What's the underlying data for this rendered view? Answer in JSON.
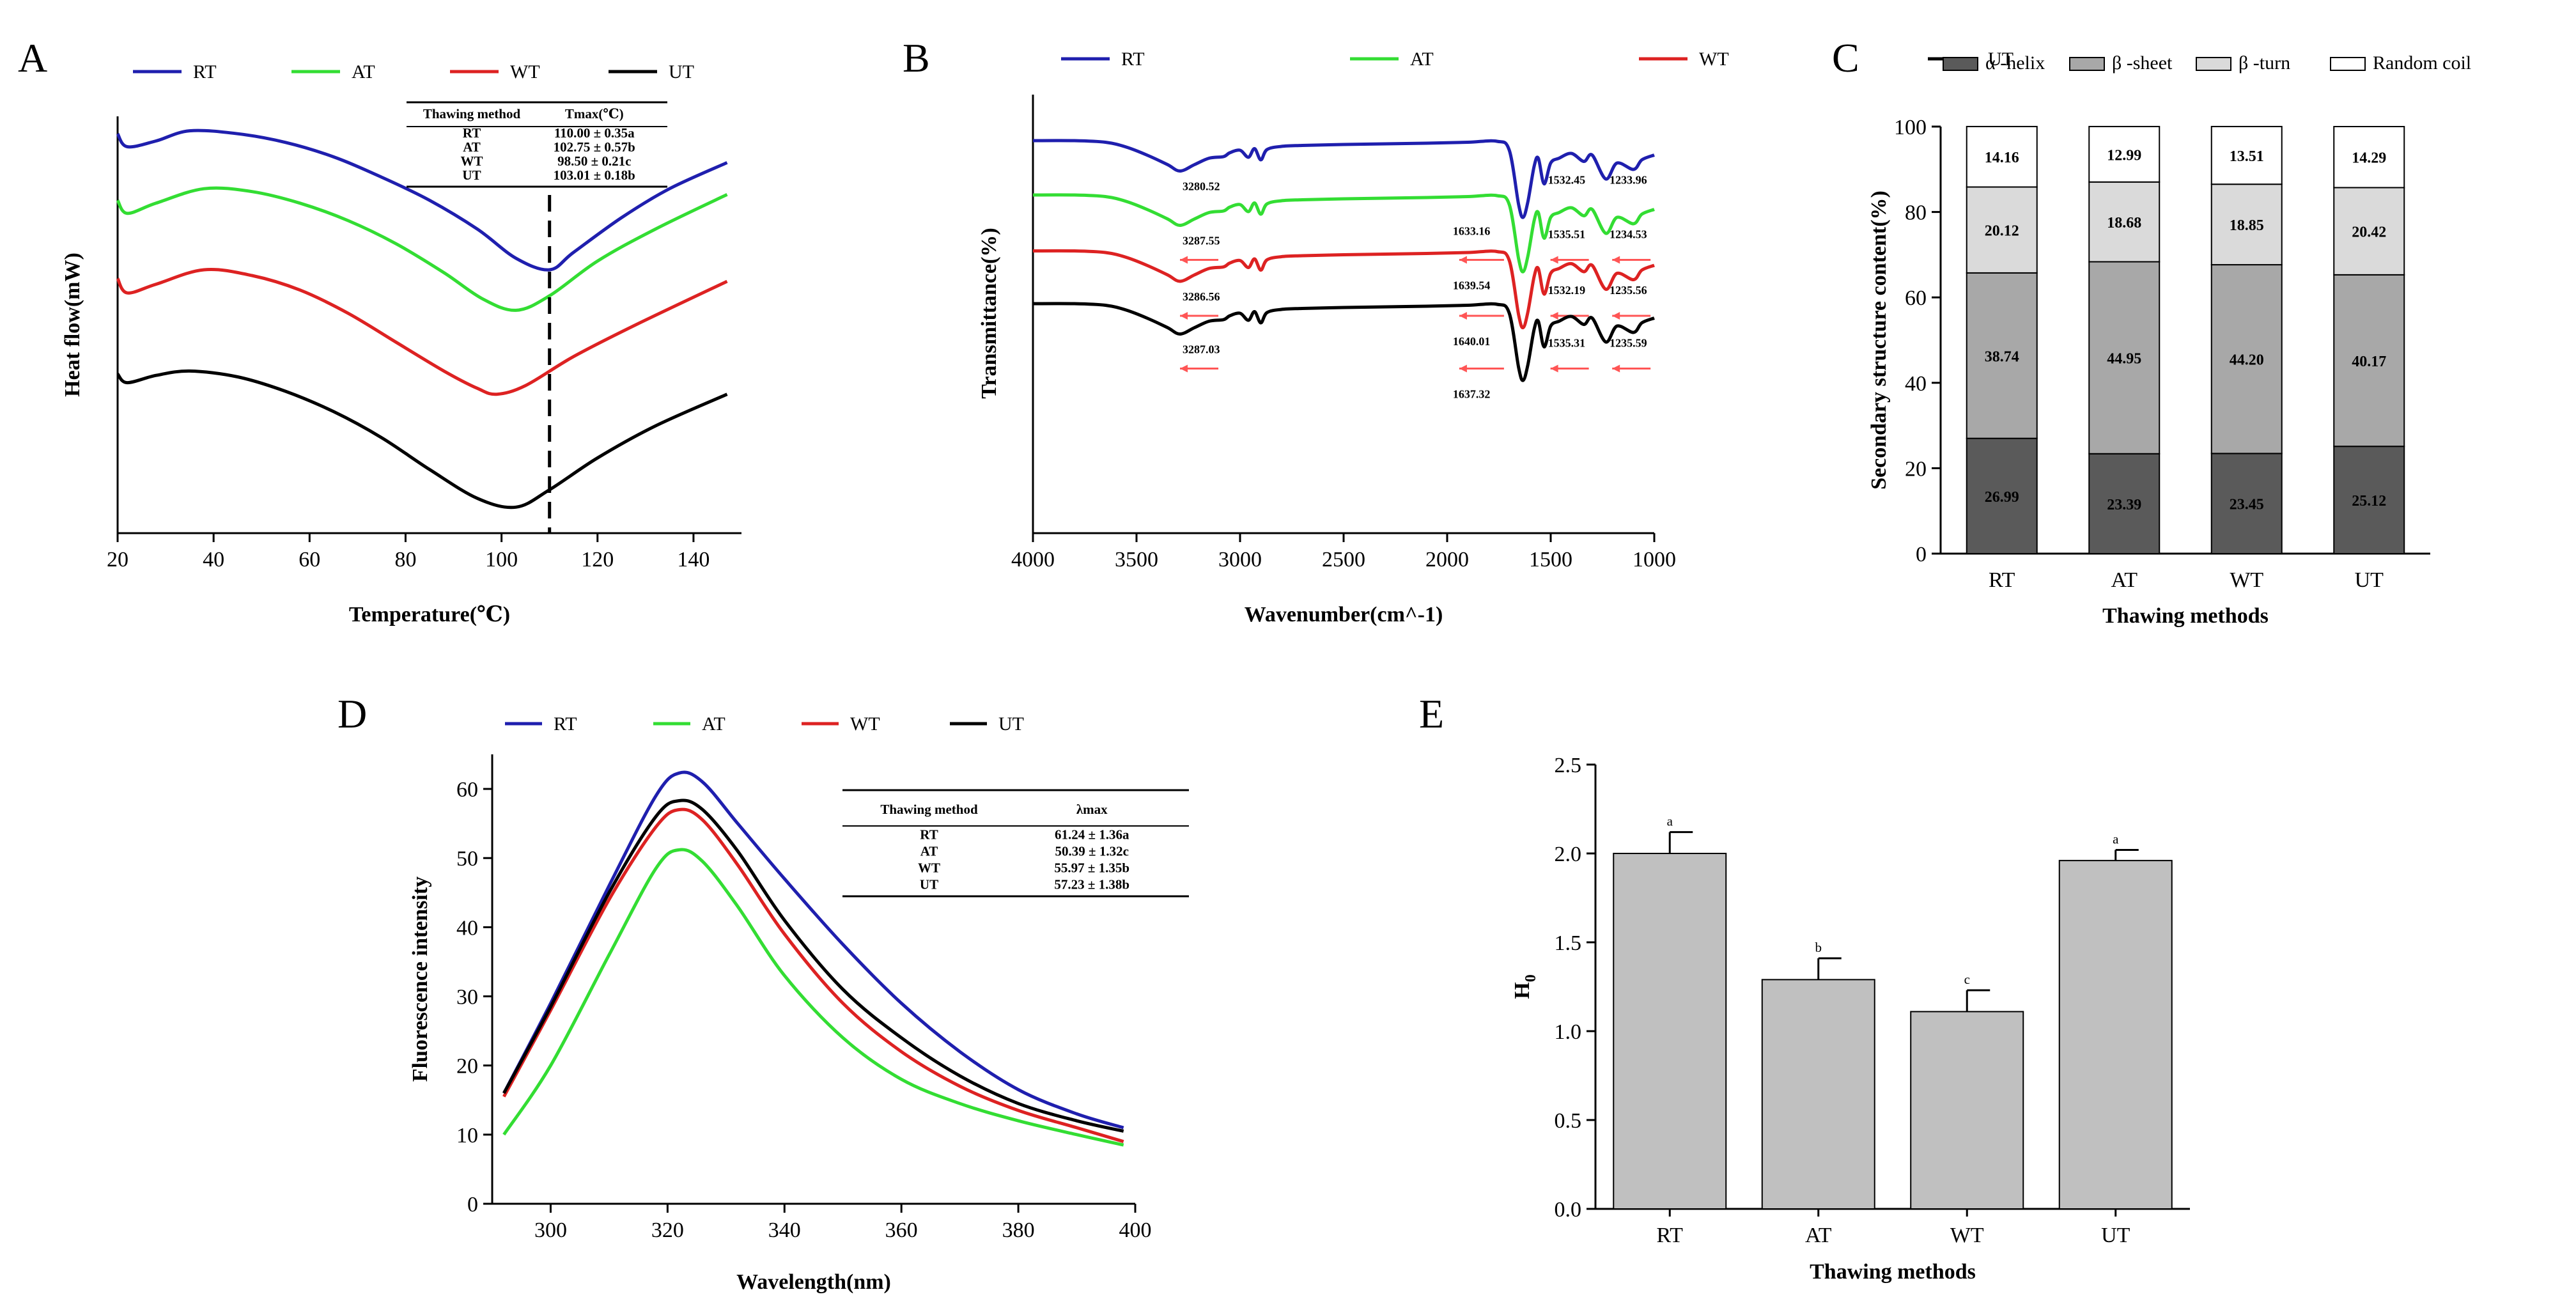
{
  "colors": {
    "RT": "#1f1fae",
    "AT": "#33dd33",
    "WT": "#dd2222",
    "UT": "#000000",
    "arrow": "#ff5555",
    "alpha": "#5a5a5a",
    "beta_sheet": "#a8a8a8",
    "beta_turn": "#dadada",
    "random": "#ffffff",
    "bar": "#c0c0c0"
  },
  "chart_data": [
    {
      "id": "A",
      "type": "line",
      "panel_label": "A",
      "xlabel": "Temperature(℃)",
      "ylabel": "Heat flow(mW)",
      "xlim": [
        20,
        150
      ],
      "xticks": [
        "20",
        "40",
        "60",
        "80",
        "100",
        "120",
        "140"
      ],
      "y_units": "relative (no y tick labels shown)",
      "legend": [
        "RT",
        "AT",
        "WT",
        "UT"
      ],
      "series": [
        {
          "name": "RT",
          "points": [
            [
              20,
              0.06
            ],
            [
              22,
              0.015
            ],
            [
              28,
              0.035
            ],
            [
              35,
              0.07
            ],
            [
              45,
              0.06
            ],
            [
              55,
              0.03
            ],
            [
              65,
              -0.02
            ],
            [
              75,
              -0.09
            ],
            [
              85,
              -0.17
            ],
            [
              95,
              -0.27
            ],
            [
              103,
              -0.37
            ],
            [
              110,
              -0.41
            ],
            [
              115,
              -0.35
            ],
            [
              125,
              -0.23
            ],
            [
              135,
              -0.13
            ],
            [
              147,
              -0.04
            ]
          ]
        },
        {
          "name": "AT",
          "points": [
            [
              20,
              -0.17
            ],
            [
              22,
              -0.215
            ],
            [
              28,
              -0.18
            ],
            [
              38,
              -0.13
            ],
            [
              48,
              -0.14
            ],
            [
              58,
              -0.18
            ],
            [
              68,
              -0.24
            ],
            [
              78,
              -0.32
            ],
            [
              88,
              -0.42
            ],
            [
              96,
              -0.51
            ],
            [
              103,
              -0.55
            ],
            [
              110,
              -0.5
            ],
            [
              120,
              -0.38
            ],
            [
              132,
              -0.27
            ],
            [
              147,
              -0.15
            ]
          ]
        },
        {
          "name": "WT",
          "points": [
            [
              20,
              -0.44
            ],
            [
              22,
              -0.49
            ],
            [
              28,
              -0.46
            ],
            [
              38,
              -0.41
            ],
            [
              48,
              -0.43
            ],
            [
              58,
              -0.48
            ],
            [
              68,
              -0.56
            ],
            [
              78,
              -0.66
            ],
            [
              88,
              -0.76
            ],
            [
              95,
              -0.82
            ],
            [
              99,
              -0.84
            ],
            [
              105,
              -0.81
            ],
            [
              115,
              -0.71
            ],
            [
              128,
              -0.6
            ],
            [
              147,
              -0.45
            ]
          ]
        },
        {
          "name": "UT",
          "points": [
            [
              20,
              -0.77
            ],
            [
              22,
              -0.8
            ],
            [
              28,
              -0.775
            ],
            [
              35,
              -0.76
            ],
            [
              45,
              -0.78
            ],
            [
              55,
              -0.83
            ],
            [
              65,
              -0.9
            ],
            [
              75,
              -0.99
            ],
            [
              85,
              -1.1
            ],
            [
              95,
              -1.2
            ],
            [
              103,
              -1.23
            ],
            [
              110,
              -1.17
            ],
            [
              120,
              -1.06
            ],
            [
              132,
              -0.95
            ],
            [
              147,
              -0.84
            ]
          ]
        }
      ],
      "annotation": {
        "dashed_line_x": 110
      },
      "table": {
        "headers": [
          "Thawing method",
          "Tmax(℃)"
        ],
        "rows": [
          [
            "RT",
            "110.00 ± 0.35a"
          ],
          [
            "AT",
            "102.75 ± 0.57b"
          ],
          [
            "WT",
            "98.50 ± 0.21c"
          ],
          [
            "UT",
            "103.01 ± 0.18b"
          ]
        ]
      }
    },
    {
      "id": "B",
      "type": "line",
      "panel_label": "B",
      "xlabel": "Wavenumber(cm^-1)",
      "ylabel": "Transmittance(%)",
      "xlim": [
        4000,
        1000
      ],
      "xticks": [
        "4000",
        "3500",
        "3000",
        "2500",
        "2000",
        "1500",
        "1000"
      ],
      "y_units": "relative (no y tick labels shown)",
      "legend": [
        "RT",
        "AT",
        "WT",
        "UT"
      ],
      "series": [
        {
          "name": "RT",
          "offset": 0
        },
        {
          "name": "AT",
          "offset": -0.17
        },
        {
          "name": "WT",
          "offset": -0.345
        },
        {
          "name": "UT",
          "offset": -0.51
        }
      ],
      "peak_labels": [
        {
          "series": "RT",
          "labels": [
            "3280.52",
            "1633.16",
            "1532.45",
            "1233.96"
          ]
        },
        {
          "series": "AT",
          "labels": [
            "3287.55",
            "1639.54",
            "1535.51",
            "1234.53"
          ]
        },
        {
          "series": "WT",
          "labels": [
            "3286.56",
            "1640.01",
            "1532.19",
            "1235.56"
          ]
        },
        {
          "series": "UT",
          "labels": [
            "3287.03",
            "1637.32",
            "1535.31",
            "1235.59"
          ]
        }
      ]
    },
    {
      "id": "C",
      "type": "bar",
      "stacked": true,
      "panel_label": "C",
      "xlabel": "Thawing methods",
      "ylabel": "Secondary structure content(%)",
      "ylim": [
        0,
        100
      ],
      "yticks": [
        "0",
        "20",
        "40",
        "60",
        "80",
        "100"
      ],
      "categories": [
        "RT",
        "AT",
        "WT",
        "UT"
      ],
      "series": [
        {
          "name": "α -helix",
          "values": [
            26.99,
            23.39,
            23.45,
            25.12
          ]
        },
        {
          "name": "β -sheet",
          "values": [
            38.74,
            44.95,
            44.2,
            40.17
          ]
        },
        {
          "name": "β -turn",
          "values": [
            20.12,
            18.68,
            18.85,
            20.42
          ]
        },
        {
          "name": "Random coil",
          "values": [
            14.16,
            12.99,
            13.51,
            14.29
          ]
        }
      ]
    },
    {
      "id": "D",
      "type": "line",
      "panel_label": "D",
      "xlabel": "Wavelength(nm)",
      "ylabel": "Fluorescence intensity",
      "xlim": [
        290,
        400
      ],
      "ylim": [
        0,
        65
      ],
      "xticks": [
        "300",
        "320",
        "340",
        "360",
        "380",
        "400"
      ],
      "yticks": [
        "0",
        "10",
        "20",
        "30",
        "40",
        "50",
        "60"
      ],
      "legend": [
        "RT",
        "AT",
        "WT",
        "UT"
      ],
      "series": [
        {
          "name": "RT",
          "points": [
            [
              292,
              16
            ],
            [
              300,
              29
            ],
            [
              310,
              46
            ],
            [
              318,
              59
            ],
            [
              322,
              62.3
            ],
            [
              326,
              61
            ],
            [
              332,
              55
            ],
            [
              340,
              47
            ],
            [
              350,
              37.5
            ],
            [
              360,
              29
            ],
            [
              370,
              22
            ],
            [
              380,
              16.5
            ],
            [
              390,
              13
            ],
            [
              398,
              11
            ]
          ]
        },
        {
          "name": "AT",
          "points": [
            [
              292,
              10
            ],
            [
              300,
              20
            ],
            [
              310,
              36
            ],
            [
              318,
              48.5
            ],
            [
              322,
              51.2
            ],
            [
              326,
              49.5
            ],
            [
              332,
              43
            ],
            [
              340,
              33
            ],
            [
              350,
              24
            ],
            [
              360,
              18
            ],
            [
              370,
              14.5
            ],
            [
              380,
              12
            ],
            [
              390,
              10
            ],
            [
              398,
              8.5
            ]
          ]
        },
        {
          "name": "WT",
          "points": [
            [
              292,
              15.5
            ],
            [
              300,
              28
            ],
            [
              310,
              44
            ],
            [
              318,
              54.5
            ],
            [
              322,
              57
            ],
            [
              326,
              55.5
            ],
            [
              332,
              49
            ],
            [
              340,
              39
            ],
            [
              350,
              29
            ],
            [
              360,
              22
            ],
            [
              370,
              17
            ],
            [
              380,
              13.5
            ],
            [
              390,
              11
            ],
            [
              398,
              9
            ]
          ]
        },
        {
          "name": "UT",
          "points": [
            [
              292,
              16
            ],
            [
              300,
              28.5
            ],
            [
              310,
              45
            ],
            [
              318,
              56
            ],
            [
              322,
              58.3
            ],
            [
              326,
              57
            ],
            [
              332,
              51
            ],
            [
              340,
              41
            ],
            [
              350,
              31
            ],
            [
              360,
              24
            ],
            [
              370,
              18.5
            ],
            [
              380,
              14.5
            ],
            [
              390,
              12
            ],
            [
              398,
              10.5
            ]
          ]
        }
      ],
      "table": {
        "headers": [
          "Thawing method",
          "λmax"
        ],
        "rows": [
          [
            "RT",
            "61.24 ± 1.36a"
          ],
          [
            "AT",
            "50.39 ± 1.32c"
          ],
          [
            "WT",
            "55.97 ± 1.35b"
          ],
          [
            "UT",
            "57.23 ± 1.38b"
          ]
        ]
      }
    },
    {
      "id": "E",
      "type": "bar",
      "panel_label": "E",
      "xlabel": "Thawing methods",
      "ylabel": "H0",
      "ylim": [
        0,
        2.5
      ],
      "yticks": [
        "0.0",
        "0.5",
        "1.0",
        "1.5",
        "2.0",
        "2.5"
      ],
      "categories": [
        "RT",
        "AT",
        "WT",
        "UT"
      ],
      "values": [
        2.0,
        1.29,
        1.11,
        1.96
      ],
      "errors": [
        0.12,
        0.12,
        0.12,
        0.06
      ],
      "significance": [
        "a",
        "b",
        "c",
        "a"
      ]
    }
  ]
}
